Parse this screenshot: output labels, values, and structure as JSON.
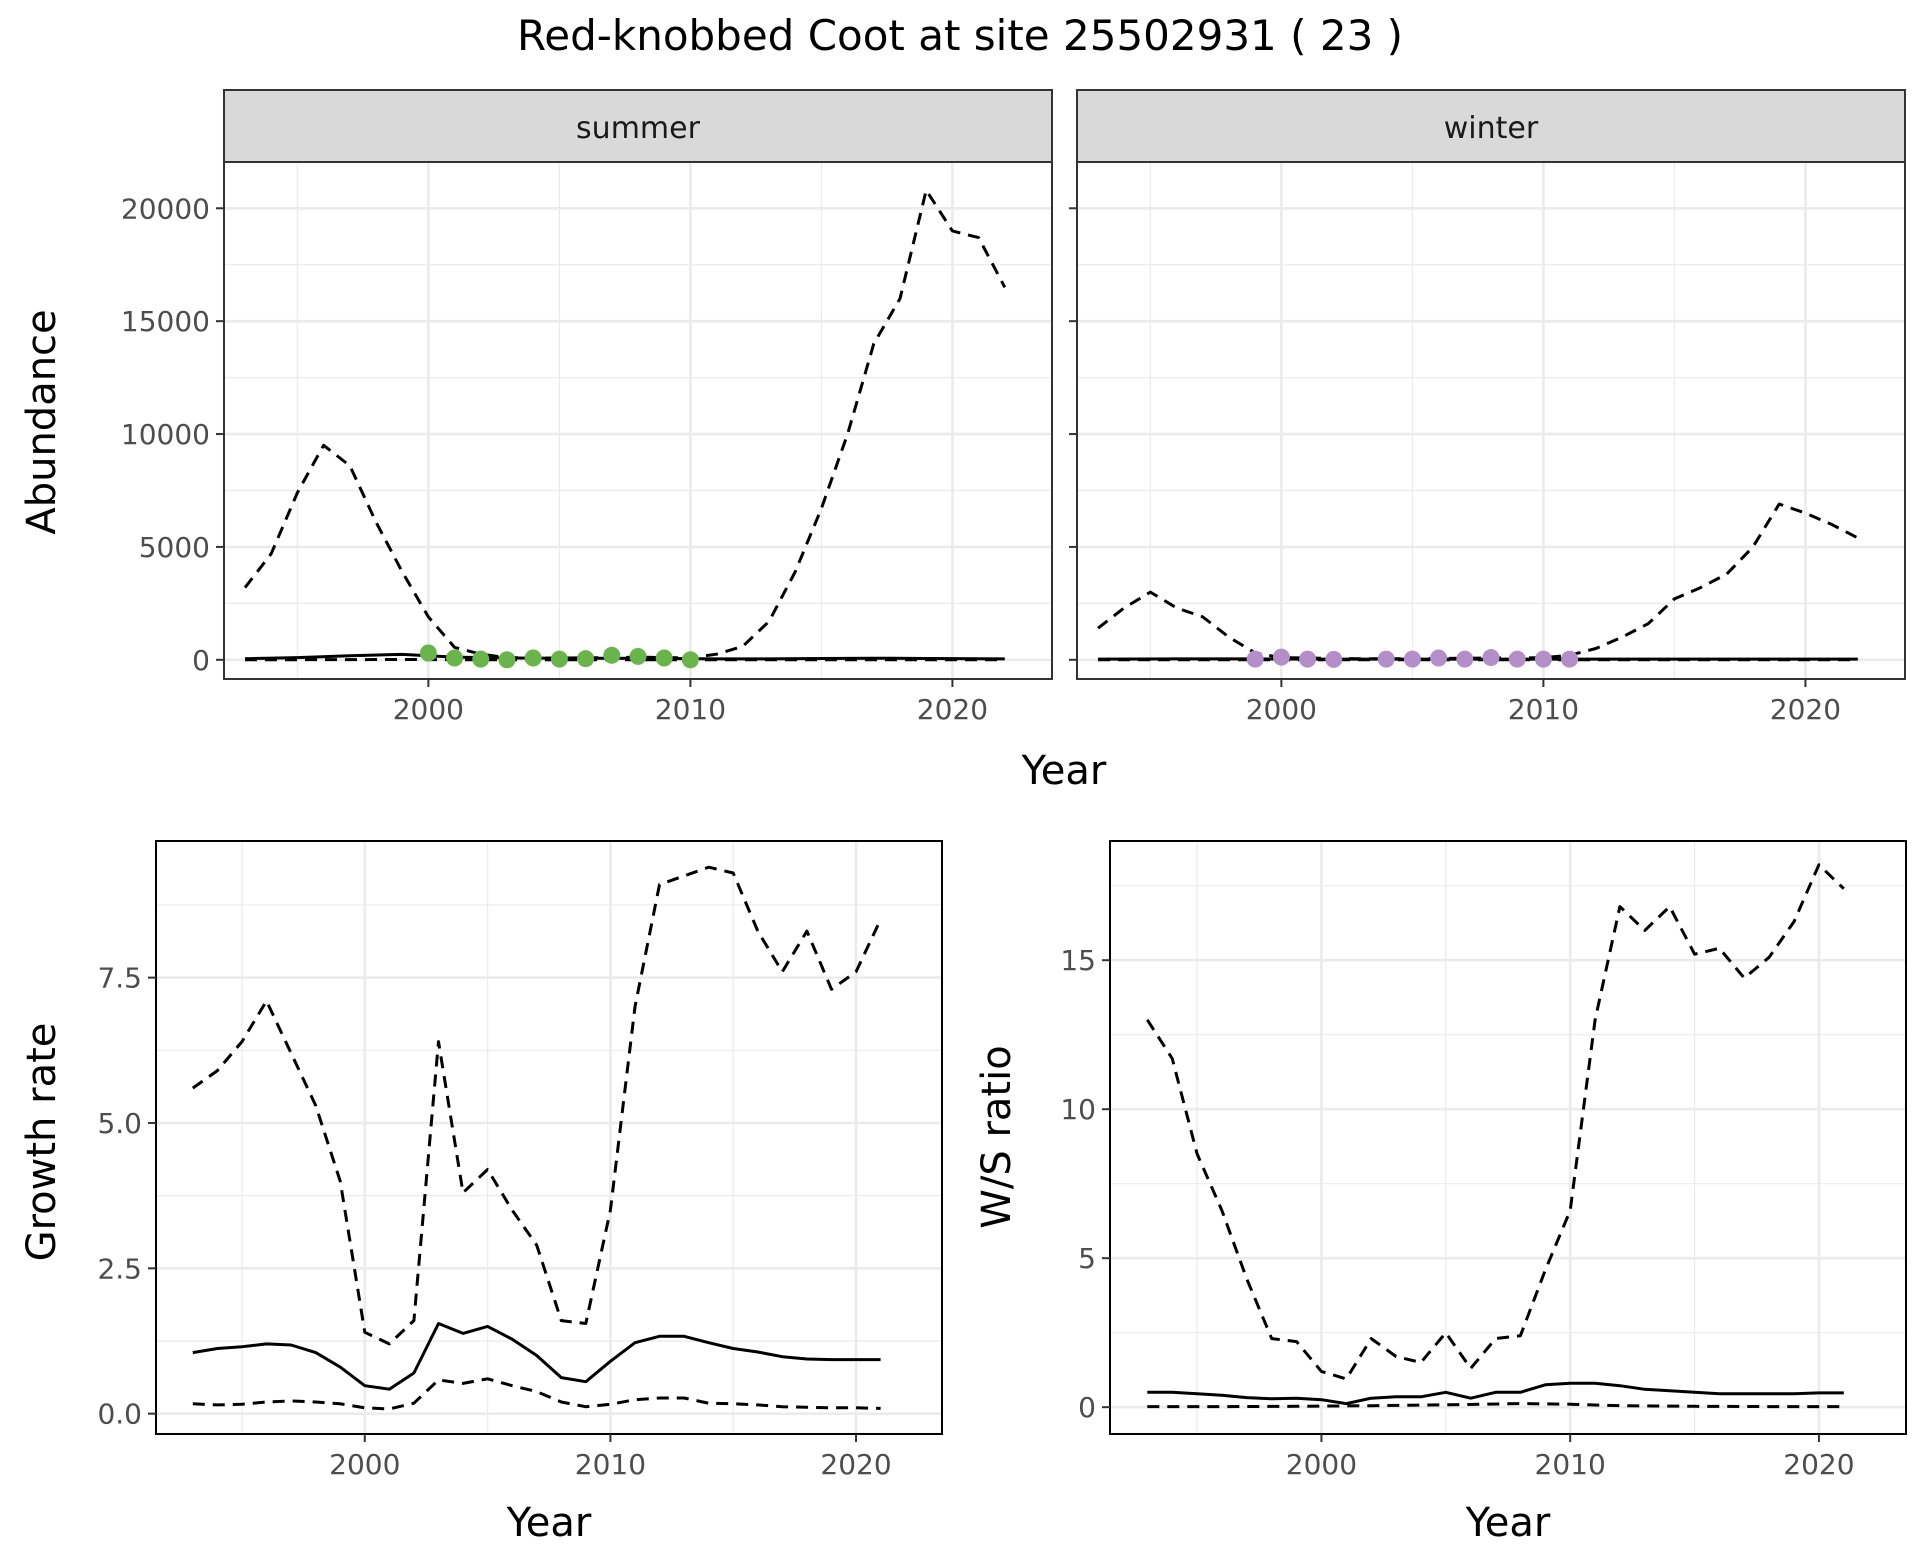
{
  "title": "Red-knobbed Coot at site 25502931 ( 23 )",
  "colors": {
    "summer_points": "#6ab44c",
    "winter_points": "#b48ec8",
    "lines": "#000000",
    "grid": "#ebebeb",
    "strip_fill": "#d9d9d9",
    "panel_border": "#333333"
  },
  "chart_data": [
    {
      "id": "abundance",
      "type": "line",
      "facets": [
        "summer",
        "winter"
      ],
      "xlabel": "Year",
      "ylabel": "Abundance",
      "xlim": [
        1992.2,
        2023.8
      ],
      "ylim": [
        -850,
        22050
      ],
      "xticks": [
        2000,
        2010,
        2020
      ],
      "yticks": [
        0,
        5000,
        10000,
        15000,
        20000
      ],
      "grid": true,
      "panels": [
        {
          "name": "summer",
          "series": [
            {
              "style": "dashed",
              "x": [
                1993,
                1994,
                1995,
                1996,
                1997,
                1998,
                1999,
                2000,
                2001,
                2002,
                2003,
                2004,
                2005,
                2006,
                2007,
                2008,
                2009,
                2010,
                2011,
                2012,
                2013,
                2014,
                2015,
                2016,
                2017,
                2018,
                2019,
                2020,
                2021,
                2022
              ],
              "y": [
                3200,
                4700,
                7400,
                9500,
                8600,
                6100,
                3900,
                1900,
                550,
                250,
                100,
                80,
                80,
                90,
                100,
                120,
                100,
                90,
                250,
                600,
                1700,
                3900,
                6700,
                10000,
                14000,
                16000,
                20800,
                19000,
                18700,
                16500
              ]
            },
            {
              "style": "solid",
              "x": [
                1993,
                1995,
                1997,
                1999,
                2001,
                2003,
                2005,
                2007,
                2009,
                2011,
                2013,
                2015,
                2017,
                2019,
                2021,
                2022
              ],
              "y": [
                50,
                100,
                180,
                240,
                120,
                80,
                70,
                70,
                60,
                40,
                40,
                60,
                70,
                60,
                50,
                40
              ]
            },
            {
              "style": "dashed",
              "x": [
                1993,
                1995,
                1997,
                1999,
                2001,
                2003,
                2005,
                2007,
                2009,
                2011,
                2013,
                2015,
                2017,
                2019,
                2021,
                2022
              ],
              "y": [
                0,
                5,
                10,
                15,
                5,
                0,
                0,
                0,
                0,
                0,
                0,
                0,
                0,
                0,
                0,
                0
              ]
            }
          ],
          "points": {
            "x": [
              2000,
              2001,
              2002,
              2003,
              2004,
              2005,
              2006,
              2007,
              2008,
              2009,
              2010
            ],
            "y": [
              300,
              80,
              30,
              0,
              80,
              30,
              50,
              200,
              150,
              80,
              0
            ]
          }
        },
        {
          "name": "winter",
          "series": [
            {
              "style": "dashed",
              "x": [
                1993,
                1994,
                1995,
                1996,
                1997,
                1998,
                1999,
                2000,
                2001,
                2002,
                2003,
                2004,
                2005,
                2006,
                2007,
                2008,
                2009,
                2010,
                2011,
                2012,
                2013,
                2014,
                2015,
                2016,
                2017,
                2018,
                2019,
                2020,
                2021,
                2022
              ],
              "y": [
                1400,
                2300,
                3000,
                2300,
                1900,
                1000,
                300,
                100,
                80,
                60,
                50,
                50,
                50,
                60,
                70,
                80,
                80,
                100,
                200,
                500,
                1000,
                1600,
                2700,
                3200,
                3800,
                5000,
                6900,
                6500,
                6000,
                5400
              ]
            },
            {
              "style": "solid",
              "x": [
                1993,
                1996,
                1999,
                2002,
                2005,
                2008,
                2011,
                2014,
                2017,
                2020,
                2022
              ],
              "y": [
                30,
                40,
                40,
                30,
                30,
                30,
                30,
                30,
                30,
                30,
                30
              ]
            },
            {
              "style": "dashed",
              "x": [
                1993,
                1996,
                1999,
                2002,
                2005,
                2008,
                2011,
                2014,
                2017,
                2020,
                2022
              ],
              "y": [
                0,
                0,
                5,
                0,
                0,
                0,
                0,
                0,
                0,
                0,
                0
              ]
            }
          ],
          "points": {
            "x": [
              1999,
              2000,
              2001,
              2002,
              2004,
              2005,
              2006,
              2007,
              2008,
              2009,
              2010,
              2011
            ],
            "y": [
              30,
              120,
              30,
              20,
              30,
              30,
              80,
              30,
              100,
              30,
              30,
              30
            ]
          }
        }
      ]
    },
    {
      "id": "growth",
      "type": "line",
      "xlabel": "Year",
      "ylabel": "Growth rate",
      "xlim": [
        1991.5,
        2023.5
      ],
      "ylim": [
        -0.35,
        9.85
      ],
      "xticks": [
        2000,
        2010,
        2020
      ],
      "yticks": [
        0.0,
        2.5,
        5.0,
        7.5
      ],
      "ytick_labels": [
        "0.0",
        "2.5",
        "5.0",
        "7.5"
      ],
      "grid": true,
      "series": [
        {
          "style": "dashed",
          "x": [
            1993,
            1994,
            1995,
            1996,
            1997,
            1998,
            1999,
            2000,
            2001,
            2002,
            2003,
            2004,
            2005,
            2006,
            2007,
            2008,
            2009,
            2010,
            2011,
            2012,
            2013,
            2014,
            2015,
            2016,
            2017,
            2018,
            2019,
            2020,
            2021
          ],
          "y": [
            5.6,
            5.9,
            6.4,
            7.1,
            6.2,
            5.3,
            4.0,
            1.4,
            1.2,
            1.6,
            6.4,
            3.8,
            4.2,
            3.5,
            2.9,
            1.6,
            1.55,
            3.5,
            7.0,
            9.1,
            9.25,
            9.4,
            9.3,
            8.3,
            7.6,
            8.3,
            7.3,
            7.6,
            8.5
          ]
        },
        {
          "style": "solid",
          "x": [
            1993,
            1994,
            1995,
            1996,
            1997,
            1998,
            1999,
            2000,
            2001,
            2002,
            2003,
            2004,
            2005,
            2006,
            2007,
            2008,
            2009,
            2010,
            2011,
            2012,
            2013,
            2014,
            2015,
            2016,
            2017,
            2018,
            2019,
            2020,
            2021
          ],
          "y": [
            1.05,
            1.12,
            1.15,
            1.2,
            1.18,
            1.05,
            0.8,
            0.48,
            0.42,
            0.7,
            1.55,
            1.38,
            1.5,
            1.28,
            1.0,
            0.62,
            0.55,
            0.9,
            1.22,
            1.33,
            1.33,
            1.22,
            1.12,
            1.06,
            0.98,
            0.94,
            0.93,
            0.93,
            0.93
          ]
        },
        {
          "style": "dashed",
          "x": [
            1993,
            1994,
            1995,
            1996,
            1997,
            1998,
            1999,
            2000,
            2001,
            2002,
            2003,
            2004,
            2005,
            2006,
            2007,
            2008,
            2009,
            2010,
            2011,
            2012,
            2013,
            2014,
            2015,
            2016,
            2017,
            2018,
            2019,
            2020,
            2021
          ],
          "y": [
            0.17,
            0.15,
            0.16,
            0.2,
            0.22,
            0.2,
            0.17,
            0.1,
            0.08,
            0.18,
            0.58,
            0.52,
            0.6,
            0.48,
            0.38,
            0.2,
            0.12,
            0.16,
            0.24,
            0.27,
            0.27,
            0.18,
            0.17,
            0.15,
            0.12,
            0.11,
            0.1,
            0.1,
            0.09
          ]
        }
      ]
    },
    {
      "id": "ws_ratio",
      "type": "line",
      "xlabel": "Year",
      "ylabel": "W/S ratio",
      "xlim": [
        1991.5,
        2023.5
      ],
      "ylim": [
        -0.9,
        19.0
      ],
      "xticks": [
        2000,
        2010,
        2020
      ],
      "yticks": [
        0,
        5,
        10,
        15
      ],
      "grid": true,
      "series": [
        {
          "style": "dashed",
          "x": [
            1993,
            1994,
            1995,
            1996,
            1997,
            1998,
            1999,
            2000,
            2001,
            2002,
            2003,
            2004,
            2005,
            2006,
            2007,
            2008,
            2009,
            2010,
            2011,
            2012,
            2013,
            2014,
            2015,
            2016,
            2017,
            2018,
            2019,
            2020,
            2021
          ],
          "y": [
            13.0,
            11.7,
            8.5,
            6.6,
            4.3,
            2.3,
            2.2,
            1.2,
            0.95,
            2.3,
            1.7,
            1.5,
            2.5,
            1.3,
            2.3,
            2.4,
            4.6,
            6.6,
            13.0,
            16.8,
            16.0,
            16.8,
            15.2,
            15.4,
            14.4,
            15.1,
            16.3,
            18.2,
            17.4
          ]
        },
        {
          "style": "solid",
          "x": [
            1993,
            1994,
            1995,
            1996,
            1997,
            1998,
            1999,
            2000,
            2001,
            2002,
            2003,
            2004,
            2005,
            2006,
            2007,
            2008,
            2009,
            2010,
            2011,
            2012,
            2013,
            2014,
            2015,
            2016,
            2017,
            2018,
            2019,
            2020,
            2021
          ],
          "y": [
            0.5,
            0.5,
            0.45,
            0.4,
            0.32,
            0.28,
            0.3,
            0.25,
            0.12,
            0.3,
            0.35,
            0.35,
            0.5,
            0.3,
            0.5,
            0.5,
            0.75,
            0.8,
            0.8,
            0.72,
            0.6,
            0.55,
            0.5,
            0.45,
            0.45,
            0.45,
            0.45,
            0.48,
            0.48
          ]
        },
        {
          "style": "dashed",
          "x": [
            1993,
            1996,
            1999,
            2002,
            2005,
            2008,
            2010,
            2012,
            2015,
            2018,
            2021
          ],
          "y": [
            0.02,
            0.02,
            0.03,
            0.05,
            0.08,
            0.12,
            0.1,
            0.05,
            0.03,
            0.02,
            0.02
          ]
        }
      ]
    }
  ]
}
